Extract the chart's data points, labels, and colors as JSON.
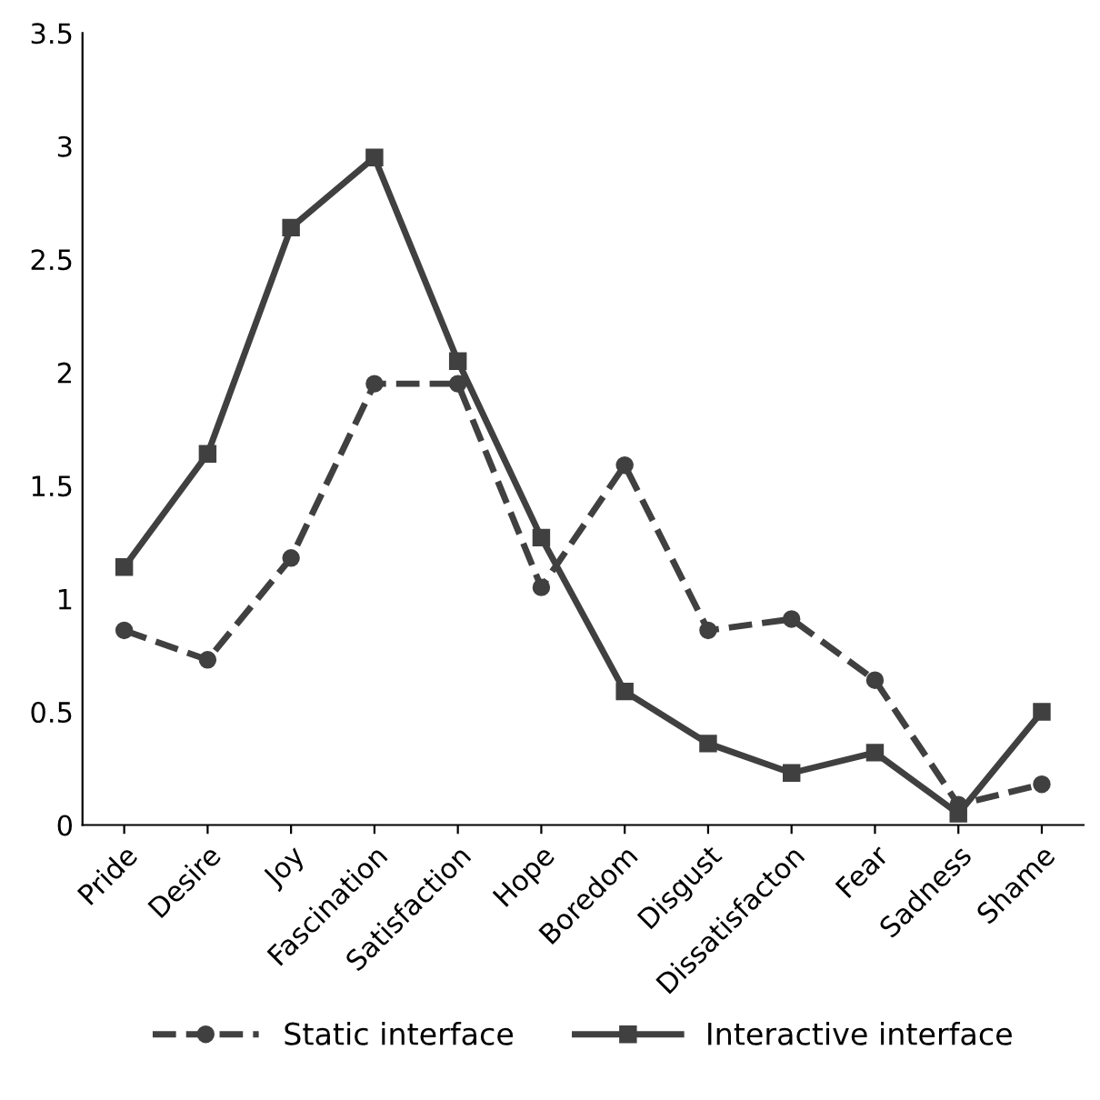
{
  "chart_data": {
    "type": "line",
    "categories": [
      "Pride",
      "Desire",
      "Joy",
      "Fascination",
      "Satisfaction",
      "Hope",
      "Boredom",
      "Disgust",
      "Dissatisfacton",
      "Fear",
      "Sadness",
      "Shame"
    ],
    "series": [
      {
        "name": "Static interface",
        "color": "#404040",
        "marker": "circle",
        "line_style": "dashed",
        "values": [
          0.86,
          0.73,
          1.18,
          1.95,
          1.95,
          1.05,
          1.59,
          0.86,
          0.91,
          0.64,
          0.09,
          0.18
        ]
      },
      {
        "name": "Interactive interface",
        "color": "#404040",
        "marker": "square",
        "line_style": "solid",
        "values": [
          1.14,
          1.64,
          2.64,
          2.95,
          2.05,
          1.27,
          0.59,
          0.36,
          0.23,
          0.32,
          0.05,
          0.5
        ]
      }
    ],
    "ylim": [
      0,
      3.5
    ],
    "yticks": [
      0,
      0.5,
      1,
      1.5,
      2,
      2.5,
      3,
      3.5
    ],
    "grid": false,
    "legend": "bottom"
  }
}
